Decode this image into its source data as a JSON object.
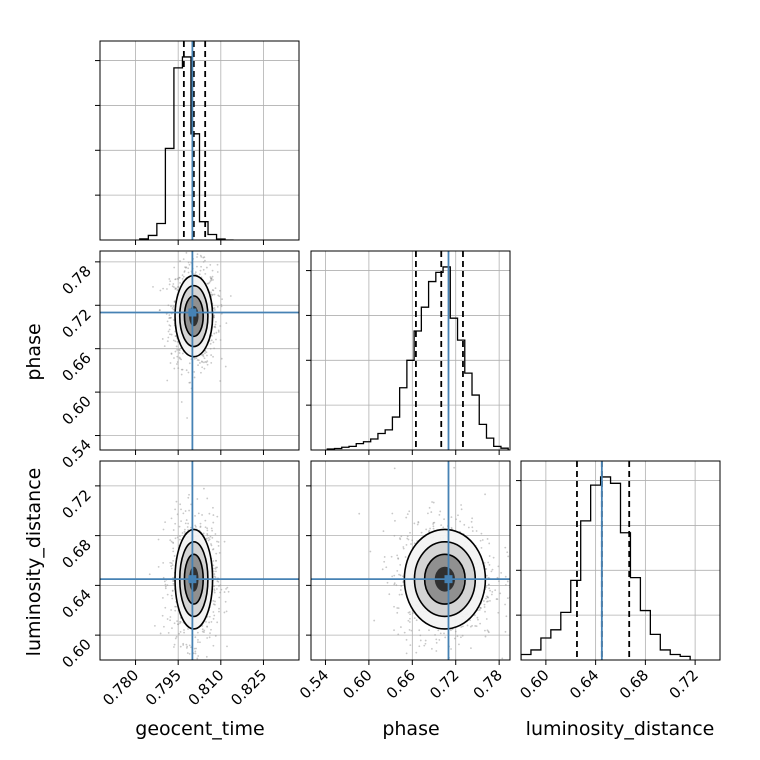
{
  "chart_data": {
    "type": "corner",
    "parameters": [
      "geocent_time",
      "phase",
      "luminosity_distance"
    ],
    "truths": {
      "geocent_time": 0.8,
      "phase": 0.71,
      "luminosity_distance": 0.645
    },
    "quantiles": {
      "geocent_time": [
        0.797,
        0.8005,
        0.8045
      ],
      "phase": [
        0.665,
        0.7,
        0.73
      ],
      "luminosity_distance": [
        0.625,
        0.645,
        0.667
      ]
    },
    "axes": {
      "geocent_time": {
        "range": [
          0.7675,
          0.8375
        ],
        "ticks": [
          0.78,
          0.795,
          0.81,
          0.825
        ],
        "tick_labels": [
          "0.780",
          "0.795",
          "0.810",
          "0.825"
        ]
      },
      "phase": {
        "range": [
          0.52,
          0.795
        ],
        "ticks": [
          0.54,
          0.6,
          0.66,
          0.72,
          0.78
        ],
        "tick_labels": [
          "0.54",
          "0.60",
          "0.66",
          "0.72",
          "0.78"
        ]
      },
      "luminosity_distance": {
        "range": [
          0.58,
          0.74
        ],
        "ticks": [
          0.6,
          0.64,
          0.68,
          0.72
        ],
        "tick_labels": [
          "0.60",
          "0.64",
          "0.68",
          "0.72"
        ]
      }
    },
    "histograms": {
      "geocent_time": {
        "bins": [
          0.7815,
          0.7845,
          0.7875,
          0.7905,
          0.7935,
          0.7965,
          0.7995,
          0.8025,
          0.8055,
          0.8085,
          0.8115,
          0.8145
        ],
        "counts": [
          0.006,
          0.025,
          0.09,
          0.5,
          0.94,
          1.0,
          0.58,
          0.1,
          0.03,
          0.005,
          0.0
        ]
      },
      "phase": {
        "bins": [
          0.5425,
          0.5525,
          0.5625,
          0.5725,
          0.5825,
          0.5925,
          0.6025,
          0.6125,
          0.6225,
          0.6325,
          0.6425,
          0.6525,
          0.6625,
          0.6725,
          0.6825,
          0.6925,
          0.7025,
          0.7125,
          0.7225,
          0.7325,
          0.7425,
          0.7525,
          0.7625,
          0.7725,
          0.7825,
          0.7925
        ],
        "counts": [
          0.005,
          0.008,
          0.015,
          0.02,
          0.035,
          0.045,
          0.06,
          0.09,
          0.11,
          0.18,
          0.34,
          0.49,
          0.65,
          0.78,
          0.92,
          0.97,
          1.0,
          0.72,
          0.6,
          0.42,
          0.3,
          0.14,
          0.065,
          0.02,
          0.01
        ]
      },
      "luminosity_distance": {
        "bins": [
          0.58,
          0.588,
          0.596,
          0.604,
          0.612,
          0.62,
          0.628,
          0.636,
          0.644,
          0.652,
          0.66,
          0.668,
          0.676,
          0.684,
          0.692,
          0.7,
          0.708,
          0.716
        ],
        "counts": [
          0.03,
          0.055,
          0.12,
          0.165,
          0.26,
          0.435,
          0.76,
          0.955,
          1.0,
          0.965,
          0.695,
          0.45,
          0.27,
          0.14,
          0.055,
          0.03,
          0.02
        ]
      }
    },
    "colors": {
      "truth": "#4682b4",
      "lines": "#000000",
      "grid": "#b0b0b0",
      "samples": "#9a9a9a"
    }
  }
}
